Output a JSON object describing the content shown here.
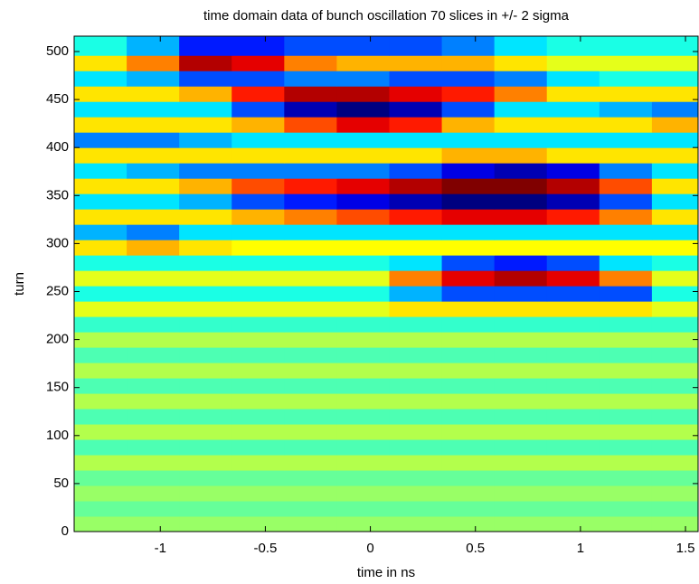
{
  "chart_data": {
    "type": "heatmap",
    "title": "time domain data of bunch oscillation 70 slices in +/- 2 sigma",
    "xlabel": "time in ns",
    "ylabel": "turn",
    "colormap": "jet",
    "xlim": [
      -1.41,
      1.56
    ],
    "ylim": [
      0,
      516
    ],
    "zlim": [
      -1,
      1
    ],
    "xticks": [
      -1,
      -0.5,
      0,
      0.5,
      1,
      1.5
    ],
    "yticks": [
      0,
      50,
      100,
      150,
      200,
      250,
      300,
      350,
      400,
      450,
      500
    ],
    "xbins": [
      -1.41,
      -1.16,
      -0.91,
      -0.66,
      -0.41,
      -0.16,
      0.09,
      0.34,
      0.59,
      0.84,
      1.09,
      1.34,
      1.56
    ],
    "ybins": [
      0,
      16,
      32,
      48,
      64,
      80,
      96,
      112,
      128,
      144,
      160,
      176,
      192,
      208,
      224,
      240,
      256,
      272,
      288,
      304,
      320,
      336,
      352,
      368,
      384,
      400,
      416,
      432,
      448,
      464,
      480,
      496,
      516
    ],
    "z": [
      [
        0.05,
        0.05,
        0.05,
        0.05,
        0.05,
        0.05,
        0.05,
        0.05,
        0.05,
        0.05,
        0.05,
        0.05
      ],
      [
        -0.05,
        -0.05,
        -0.05,
        -0.05,
        -0.05,
        -0.05,
        -0.05,
        -0.05,
        -0.05,
        -0.05,
        -0.05,
        -0.05
      ],
      [
        0.05,
        0.05,
        0.05,
        0.05,
        0.05,
        0.05,
        0.05,
        0.05,
        0.05,
        0.05,
        0.05,
        0.05
      ],
      [
        -0.05,
        -0.05,
        -0.05,
        -0.05,
        -0.05,
        -0.05,
        -0.05,
        -0.05,
        -0.05,
        -0.05,
        -0.05,
        -0.05
      ],
      [
        0.1,
        0.1,
        0.1,
        0.1,
        0.1,
        0.1,
        0.1,
        0.1,
        0.1,
        0.1,
        0.1,
        0.1
      ],
      [
        -0.1,
        -0.1,
        -0.1,
        -0.1,
        -0.1,
        -0.1,
        -0.1,
        -0.1,
        -0.1,
        -0.1,
        -0.1,
        -0.1
      ],
      [
        0.1,
        0.1,
        0.1,
        0.1,
        0.1,
        0.1,
        0.1,
        0.1,
        0.1,
        0.1,
        0.1,
        0.1
      ],
      [
        -0.1,
        -0.1,
        -0.1,
        -0.1,
        -0.1,
        -0.1,
        -0.1,
        -0.1,
        -0.1,
        -0.1,
        -0.1,
        -0.1
      ],
      [
        0.1,
        0.1,
        0.1,
        0.1,
        0.1,
        0.1,
        0.1,
        0.1,
        0.1,
        0.1,
        0.1,
        0.1
      ],
      [
        -0.1,
        -0.1,
        -0.1,
        -0.1,
        -0.1,
        -0.1,
        -0.1,
        -0.1,
        -0.1,
        -0.1,
        -0.1,
        -0.1
      ],
      [
        0.1,
        0.1,
        0.1,
        0.1,
        0.1,
        0.1,
        0.1,
        0.1,
        0.1,
        0.1,
        0.1,
        0.1
      ],
      [
        -0.1,
        -0.1,
        -0.1,
        -0.1,
        -0.1,
        -0.1,
        -0.1,
        -0.1,
        -0.1,
        -0.1,
        -0.1,
        -0.1
      ],
      [
        0.1,
        0.1,
        0.1,
        0.1,
        0.1,
        0.1,
        0.1,
        0.1,
        0.1,
        0.1,
        0.1,
        0.1
      ],
      [
        -0.15,
        -0.15,
        -0.15,
        -0.15,
        -0.15,
        -0.15,
        -0.15,
        -0.15,
        -0.15,
        -0.15,
        -0.15,
        -0.15
      ],
      [
        0.2,
        0.2,
        0.2,
        0.2,
        0.2,
        0.2,
        0.3,
        0.3,
        0.3,
        0.3,
        0.3,
        0.2
      ],
      [
        -0.2,
        -0.2,
        -0.2,
        -0.2,
        -0.2,
        -0.2,
        -0.4,
        -0.6,
        -0.6,
        -0.6,
        -0.6,
        -0.2
      ],
      [
        0.2,
        0.2,
        0.2,
        0.2,
        0.2,
        0.2,
        0.5,
        0.8,
        0.9,
        0.8,
        0.5,
        0.2
      ],
      [
        -0.2,
        -0.2,
        -0.2,
        -0.2,
        -0.2,
        -0.2,
        -0.3,
        -0.6,
        -0.7,
        -0.6,
        -0.3,
        -0.2
      ],
      [
        0.3,
        0.4,
        0.3,
        0.25,
        0.25,
        0.25,
        0.25,
        0.25,
        0.25,
        0.25,
        0.25,
        0.25
      ],
      [
        -0.4,
        -0.5,
        -0.3,
        -0.3,
        -0.3,
        -0.3,
        -0.3,
        -0.3,
        -0.3,
        -0.3,
        -0.3,
        -0.3
      ],
      [
        0.3,
        0.3,
        0.3,
        0.4,
        0.5,
        0.6,
        0.7,
        0.8,
        0.8,
        0.7,
        0.5,
        0.3
      ],
      [
        -0.3,
        -0.3,
        -0.4,
        -0.6,
        -0.7,
        -0.8,
        -0.9,
        -1,
        -1,
        -0.9,
        -0.6,
        -0.3
      ],
      [
        0.3,
        0.3,
        0.4,
        0.6,
        0.7,
        0.8,
        0.9,
        1,
        1,
        0.9,
        0.6,
        0.3
      ],
      [
        -0.3,
        -0.4,
        -0.5,
        -0.5,
        -0.5,
        -0.5,
        -0.6,
        -0.8,
        -0.9,
        -0.8,
        -0.5,
        -0.3
      ],
      [
        0.3,
        0.3,
        0.3,
        0.3,
        0.3,
        0.3,
        0.3,
        0.4,
        0.4,
        0.3,
        0.3,
        0.3
      ],
      [
        -0.5,
        -0.5,
        -0.4,
        -0.3,
        -0.3,
        -0.3,
        -0.3,
        -0.3,
        -0.3,
        -0.3,
        -0.3,
        -0.3
      ],
      [
        0.3,
        0.3,
        0.3,
        0.4,
        0.6,
        0.8,
        0.7,
        0.4,
        0.3,
        0.3,
        0.3,
        0.4
      ],
      [
        -0.3,
        -0.3,
        -0.3,
        -0.6,
        -0.9,
        -1,
        -0.9,
        -0.6,
        -0.3,
        -0.3,
        -0.4,
        -0.5
      ],
      [
        0.3,
        0.3,
        0.4,
        0.7,
        0.9,
        0.9,
        0.8,
        0.7,
        0.5,
        0.3,
        0.3,
        0.3
      ],
      [
        -0.3,
        -0.4,
        -0.6,
        -0.6,
        -0.5,
        -0.5,
        -0.6,
        -0.6,
        -0.5,
        -0.3,
        -0.2,
        -0.2
      ],
      [
        0.3,
        0.5,
        0.9,
        0.8,
        0.5,
        0.4,
        0.4,
        0.4,
        0.3,
        0.2,
        0.2,
        0.2
      ],
      [
        -0.2,
        -0.4,
        -0.7,
        -0.7,
        -0.6,
        -0.6,
        -0.6,
        -0.5,
        -0.3,
        -0.2,
        -0.2,
        -0.2
      ]
    ]
  }
}
